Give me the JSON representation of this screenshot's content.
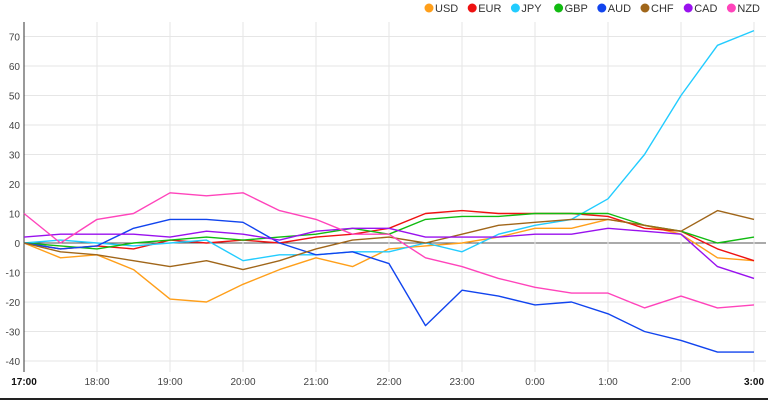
{
  "chart_data": {
    "type": "line",
    "title": "",
    "xlabel": "",
    "ylabel": "",
    "ylim": [
      -42,
      76
    ],
    "yticks": [
      -40,
      -30,
      -20,
      -10,
      0,
      10,
      20,
      30,
      40,
      50,
      60,
      70
    ],
    "x_tick_labels": [
      "17:00",
      "18:00",
      "19:00",
      "20:00",
      "21:00",
      "22:00",
      "23:00",
      "0:00",
      "1:00",
      "2:00",
      "3:00"
    ],
    "bold_x_ticks": [
      "17:00",
      "3:00"
    ],
    "x": [
      "17:00",
      "17:30",
      "18:00",
      "18:30",
      "19:00",
      "19:30",
      "20:00",
      "20:30",
      "21:00",
      "21:30",
      "22:00",
      "22:30",
      "23:00",
      "23:30",
      "0:00",
      "0:30",
      "1:00",
      "1:30",
      "2:00",
      "2:30",
      "3:00"
    ],
    "grid": true,
    "legend_position": "top-right",
    "series": [
      {
        "name": "USD",
        "color": "#ff9f1a",
        "values": [
          0,
          -5,
          -4,
          -9,
          -19,
          -20,
          -14,
          -9,
          -5,
          -8,
          -2,
          -1,
          0,
          2,
          5,
          5,
          8,
          6,
          3,
          -5,
          -6
        ]
      },
      {
        "name": "EUR",
        "color": "#ee1111",
        "values": [
          0,
          -2,
          -1,
          -2,
          1,
          0,
          1,
          0,
          2,
          3,
          5,
          10,
          11,
          10,
          10,
          10,
          9,
          5,
          4,
          -2,
          -6
        ]
      },
      {
        "name": "JPY",
        "color": "#22ccff",
        "values": [
          0,
          1,
          0,
          -1,
          0,
          1,
          -6,
          -4,
          -4,
          -3,
          -3,
          0,
          -3,
          3,
          6,
          8,
          15,
          30,
          50,
          67,
          72
        ]
      },
      {
        "name": "GBP",
        "color": "#11bb11",
        "values": [
          0,
          -1,
          -2,
          0,
          1,
          2,
          1,
          2,
          3,
          5,
          3,
          8,
          9,
          9,
          10,
          10,
          10,
          6,
          4,
          0,
          2
        ]
      },
      {
        "name": "AUD",
        "color": "#1144ee",
        "values": [
          0,
          -2,
          -1,
          5,
          8,
          8,
          7,
          0,
          -4,
          -3,
          -7,
          -28,
          -16,
          -18,
          -21,
          -20,
          -24,
          -30,
          -33,
          -37,
          -37
        ]
      },
      {
        "name": "CHF",
        "color": "#a0661a",
        "values": [
          0,
          -3,
          -4,
          -6,
          -8,
          -6,
          -9,
          -6,
          -2,
          1,
          2,
          0,
          3,
          6,
          7,
          8,
          8,
          6,
          4,
          11,
          8
        ]
      },
      {
        "name": "CAD",
        "color": "#9911ee",
        "values": [
          2,
          3,
          3,
          3,
          2,
          4,
          3,
          1,
          4,
          5,
          5,
          2,
          2,
          2,
          3,
          3,
          5,
          4,
          3,
          -8,
          -12
        ]
      },
      {
        "name": "NZD",
        "color": "#ff44bb",
        "values": [
          10,
          0,
          8,
          10,
          17,
          16,
          17,
          11,
          8,
          3,
          3,
          -5,
          -8,
          -12,
          -15,
          -17,
          -17,
          -22,
          -18,
          -22,
          -21
        ]
      }
    ]
  }
}
